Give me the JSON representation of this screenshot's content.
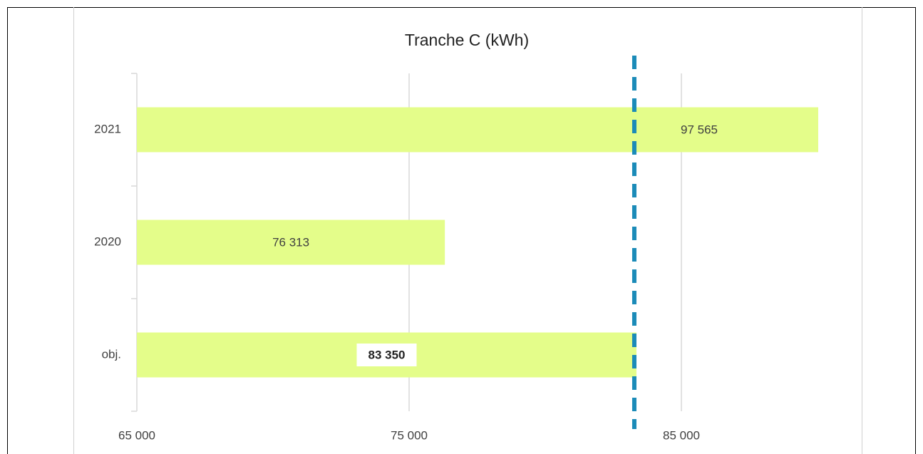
{
  "chart_data": {
    "type": "hbar",
    "title": "Tranche C (kWh)",
    "categories": [
      "2021",
      "2020",
      "obj."
    ],
    "values": [
      97565,
      76313,
      83350
    ],
    "value_labels": [
      "97 565",
      "76 313",
      "83 350"
    ],
    "color": "#e4fd8a",
    "xlim": [
      65000,
      90000
    ],
    "xticks": [
      {
        "value": 65000,
        "label": "65 000"
      },
      {
        "value": 75000,
        "label": "75 000"
      },
      {
        "value": 85000,
        "label": "85 000"
      }
    ],
    "grid": true
  }
}
